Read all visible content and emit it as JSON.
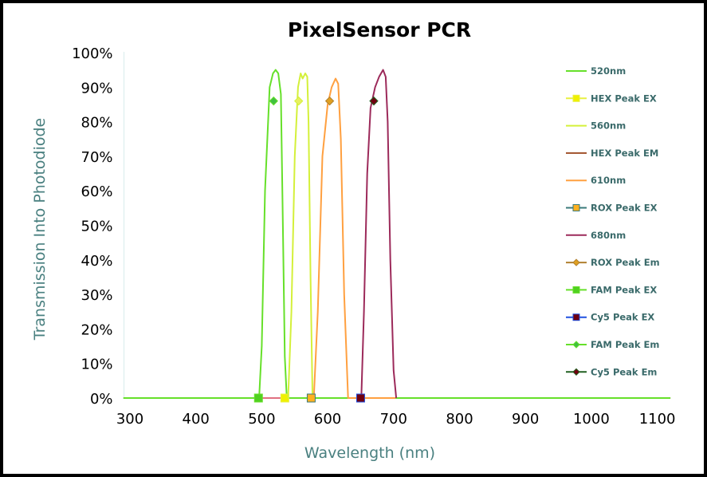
{
  "chart_data": {
    "type": "line",
    "title": "PixelSensor PCR",
    "xlabel": "Wavelength (nm)",
    "ylabel": "Transmission Into Photodiode",
    "xlim": [
      300,
      1100
    ],
    "ylim": [
      0,
      100
    ],
    "x_ticks": [
      "300",
      "400",
      "500",
      "600",
      "700",
      "800",
      "900",
      "1000",
      "1100"
    ],
    "y_ticks": [
      "0%",
      "10%",
      "20%",
      "30%",
      "40%",
      "50%",
      "60%",
      "70%",
      "80%",
      "90%",
      "100%"
    ],
    "grid": false,
    "legend_placement": "right",
    "series": [
      {
        "name": "520nm",
        "color": "#66e02a",
        "marker": "none",
        "points": [
          [
            290,
            0
          ],
          [
            496,
            0
          ],
          [
            500,
            15
          ],
          [
            505,
            60
          ],
          [
            512,
            90
          ],
          [
            517,
            94
          ],
          [
            521,
            95
          ],
          [
            525,
            94
          ],
          [
            529,
            88
          ],
          [
            532,
            50
          ],
          [
            535,
            12
          ],
          [
            538,
            0
          ],
          [
            1120,
            0
          ]
        ]
      },
      {
        "name": "HEX Peak EX",
        "color": "#e8f040",
        "marker": "square",
        "markerColor": "#f0f000",
        "points": [
          [
            535,
            0
          ]
        ]
      },
      {
        "name": "560nm",
        "color": "#d4f03a",
        "marker": "none",
        "points": [
          [
            540,
            0
          ],
          [
            545,
            25
          ],
          [
            550,
            70
          ],
          [
            555,
            90
          ],
          [
            559,
            94
          ],
          [
            562,
            92.5
          ],
          [
            566,
            94
          ],
          [
            569,
            93
          ],
          [
            571,
            80
          ],
          [
            574,
            35
          ],
          [
            577,
            0
          ]
        ]
      },
      {
        "name": "HEX Peak EM",
        "color": "#a0502a",
        "marker": "none",
        "points": []
      },
      {
        "name": "610nm",
        "color": "#ffa040",
        "marker": "none",
        "points": [
          [
            579,
            0
          ],
          [
            585,
            25
          ],
          [
            592,
            70
          ],
          [
            600,
            85
          ],
          [
            606,
            90
          ],
          [
            612,
            92.5
          ],
          [
            616,
            91
          ],
          [
            620,
            75
          ],
          [
            625,
            30
          ],
          [
            631,
            0
          ],
          [
            703,
            0
          ]
        ]
      },
      {
        "name": "ROX Peak EX",
        "color": "#3a7a7a",
        "marker": "square",
        "markerColor": "#ffb020",
        "points": [
          [
            575,
            0
          ]
        ]
      },
      {
        "name": "680nm",
        "color": "#9c2a5a",
        "marker": "none",
        "points": [
          [
            651,
            0
          ],
          [
            655,
            25
          ],
          [
            660,
            65
          ],
          [
            665,
            84
          ],
          [
            672,
            90
          ],
          [
            678,
            93
          ],
          [
            684,
            95
          ],
          [
            688,
            93
          ],
          [
            691,
            80
          ],
          [
            695,
            40
          ],
          [
            700,
            8
          ],
          [
            704,
            0
          ]
        ]
      },
      {
        "name": "ROX Peak Em",
        "color": "#b08030",
        "marker": "diamond",
        "markerColor": "#e0a020",
        "points": [
          [
            603,
            86
          ]
        ]
      },
      {
        "name": "FAM Peak EX",
        "color": "#66e02a",
        "marker": "square",
        "markerColor": "#50d020",
        "points": [
          [
            495,
            0
          ]
        ]
      },
      {
        "name": "Cy5 Peak EX",
        "color": "#2050e0",
        "marker": "square",
        "markerColor": "#700010",
        "points": [
          [
            650,
            0
          ]
        ]
      },
      {
        "name": "FAM Peak Em",
        "color": "#66e02a",
        "marker": "diamond",
        "markerColor": "#40c040",
        "points": [
          [
            518,
            86
          ]
        ]
      },
      {
        "name": "Cy5 Peak Em",
        "color": "#206020",
        "marker": "diamond",
        "markerColor": "#700010",
        "points": [
          [
            670,
            86
          ]
        ]
      },
      {
        "name": "HEX Peak Em marker",
        "color": "#d4f03a",
        "marker": "diamond",
        "markerColor": "#e8f060",
        "points": [
          [
            556,
            86
          ]
        ]
      }
    ],
    "baseline_color": "#e07080",
    "legend": [
      "520nm",
      "HEX Peak EX",
      "560nm",
      "HEX Peak EM",
      "610nm",
      "ROX Peak EX",
      "680nm",
      "ROX Peak Em",
      "FAM Peak EX",
      "Cy5 Peak EX",
      "FAM Peak Em",
      "Cy5 Peak Em"
    ]
  }
}
